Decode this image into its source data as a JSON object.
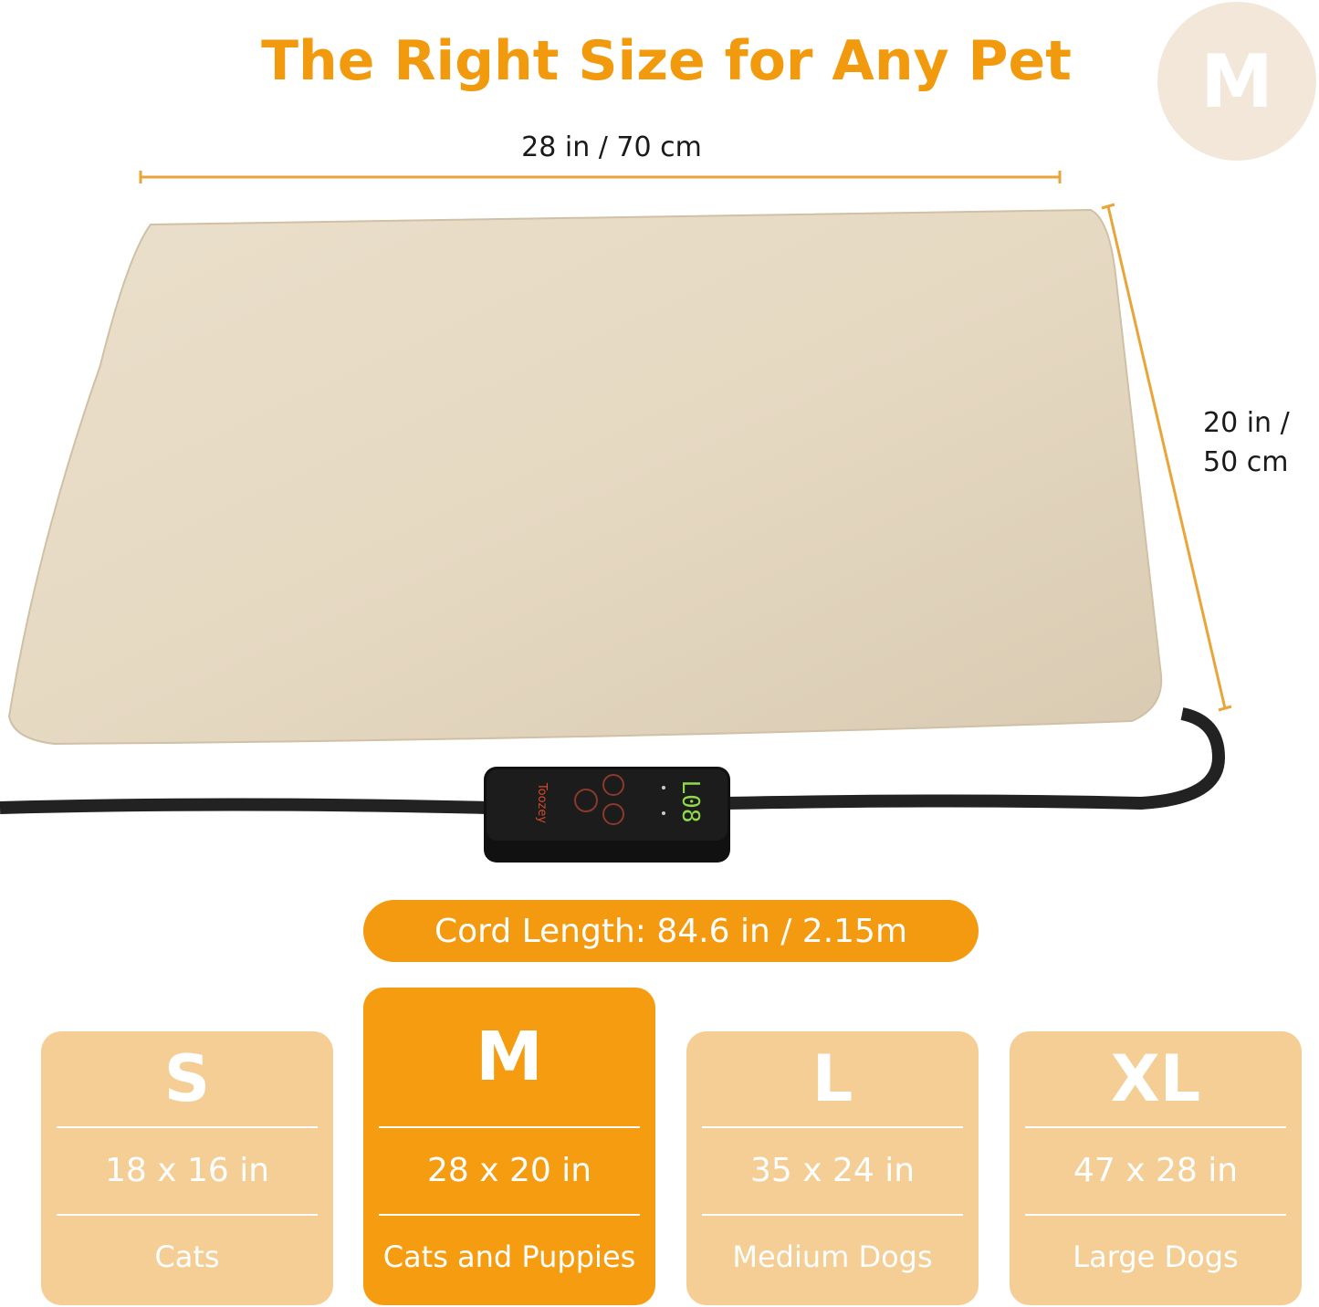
{
  "title": "The Right Size for Any Pet",
  "selected_size": "M",
  "dimensions": {
    "width": "28 in / 70 cm",
    "height_line1": "20 in /",
    "height_line2": "50 cm"
  },
  "controller": {
    "brand": "Toozey",
    "display": "L08"
  },
  "cord_length": "Cord Length: 84.6 in / 2.15m",
  "sizes": [
    {
      "letter": "S",
      "dims": "18 x 16 in",
      "pet": "Cats",
      "active": false
    },
    {
      "letter": "M",
      "dims": "28 x 20 in",
      "pet": "Cats and Puppies",
      "active": true
    },
    {
      "letter": "L",
      "dims": "35 x 24 in",
      "pet": "Medium Dogs",
      "active": false
    },
    {
      "letter": "XL",
      "dims": "47 x 28 in",
      "pet": "Large Dogs",
      "active": false
    }
  ],
  "colors": {
    "accent": "#F29A0E",
    "card": "#F4CE95",
    "card_active": "#F59C10",
    "pad": "#E8DCC6"
  }
}
